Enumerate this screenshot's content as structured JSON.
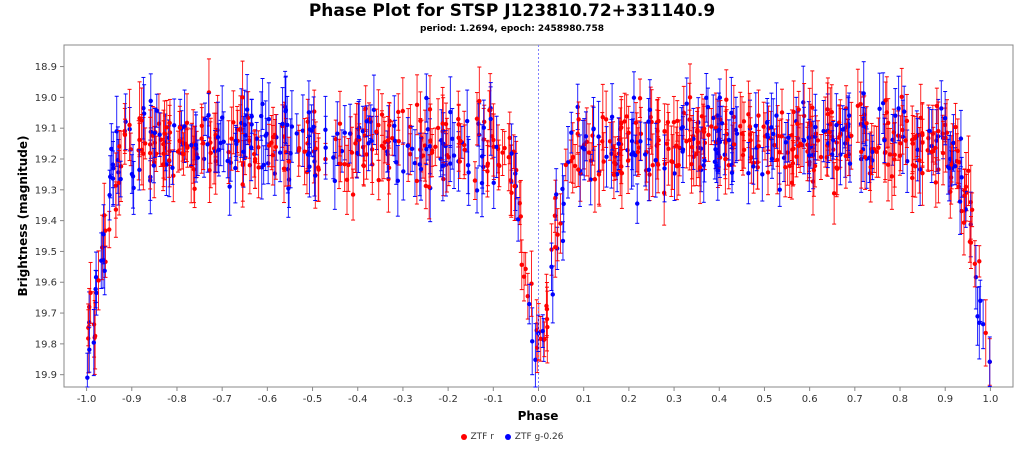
{
  "chart_data": {
    "type": "scatter",
    "title": "Phase Plot for STSP J123810.72+331140.9",
    "subtitle": "period: 1.2694, epoch: 2458980.758",
    "xlabel": "Phase",
    "ylabel": "Brightness (magnitude)",
    "xlim": [
      -1.05,
      1.05
    ],
    "ylim": [
      18.83,
      19.94
    ],
    "y_inverted": true,
    "x_ticks": [
      "-1.0",
      "-0.9",
      "-0.8",
      "-0.7",
      "-0.6",
      "-0.5",
      "-0.4",
      "-0.3",
      "-0.2",
      "-0.1",
      "0.0",
      "0.1",
      "0.2",
      "0.3",
      "0.4",
      "0.5",
      "0.6",
      "0.7",
      "0.8",
      "0.9",
      "1.0"
    ],
    "y_ticks": [
      "18.9",
      "19.0",
      "19.1",
      "19.2",
      "19.3",
      "19.4",
      "19.5",
      "19.6",
      "19.7",
      "19.8",
      "19.9"
    ],
    "vertical_marker_x": 0.0,
    "error_bars": true,
    "grid": false,
    "legend_position": "bottom",
    "light_curve": {
      "baseline_magnitude": 19.15,
      "eclipse_centers": [
        -1.0,
        0.0,
        1.0
      ],
      "eclipse_depth_magnitude": 0.65,
      "eclipse_half_width_phase": 0.045,
      "scatter_magnitude": 0.12,
      "error_bar_magnitude": [
        0.05,
        0.12
      ]
    },
    "series": [
      {
        "name": "ZTF r",
        "color": "#ff0000",
        "points_per_unit_phase": 260
      },
      {
        "name": "ZTF g-0.26",
        "color": "#0000ff",
        "points_per_unit_phase": 170
      }
    ]
  },
  "colors": {
    "axis": "#888888",
    "background": "#ffffff",
    "marker_line": "#8080ff"
  }
}
